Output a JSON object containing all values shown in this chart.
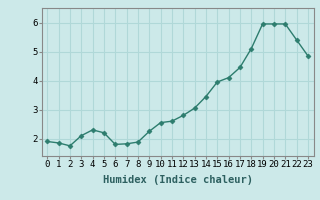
{
  "x": [
    0,
    1,
    2,
    3,
    4,
    5,
    6,
    7,
    8,
    9,
    10,
    11,
    12,
    13,
    14,
    15,
    16,
    17,
    18,
    19,
    20,
    21,
    22,
    23
  ],
  "y": [
    1.9,
    1.85,
    1.75,
    2.1,
    2.3,
    2.2,
    1.8,
    1.82,
    1.88,
    2.25,
    2.55,
    2.6,
    2.8,
    3.05,
    3.45,
    3.95,
    4.1,
    4.45,
    5.1,
    5.95,
    5.95,
    5.95,
    5.4,
    4.85
  ],
  "line_color": "#2d7d6e",
  "marker": "D",
  "marker_size": 2.5,
  "linewidth": 1.0,
  "xlabel": "Humidex (Indice chaleur)",
  "xlabel_fontsize": 7.5,
  "xlabel_fontweight": "bold",
  "yticks": [
    2,
    3,
    4,
    5,
    6
  ],
  "xlim": [
    -0.5,
    23.5
  ],
  "ylim": [
    1.4,
    6.5
  ],
  "bg_color": "#cce9e9",
  "grid_color": "#b0d8d8",
  "tick_fontsize": 6.5,
  "spine_color": "#888888"
}
